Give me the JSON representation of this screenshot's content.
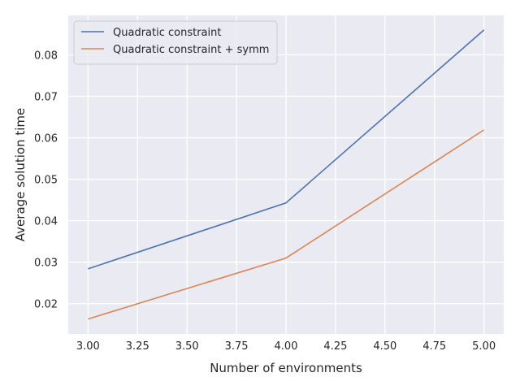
{
  "chart_data": {
    "type": "line",
    "x": [
      3.0,
      4.0,
      5.0
    ],
    "series": [
      {
        "name": "Quadratic constraint",
        "color": "#4c72b0",
        "values": [
          0.0284,
          0.0443,
          0.086
        ]
      },
      {
        "name": "Quadratic constraint + symm",
        "color": "#dd8452",
        "values": [
          0.0163,
          0.031,
          0.0619
        ]
      }
    ],
    "xlabel": "Number of environments",
    "ylabel": "Average solution time",
    "xlim": [
      2.9,
      5.1
    ],
    "ylim": [
      0.0127,
      0.0895
    ],
    "xticks": [
      3.0,
      3.25,
      3.5,
      3.75,
      4.0,
      4.25,
      4.5,
      4.75,
      5.0
    ],
    "xtick_labels": [
      "3.00",
      "3.25",
      "3.50",
      "3.75",
      "4.00",
      "4.25",
      "4.50",
      "4.75",
      "5.00"
    ],
    "yticks": [
      0.02,
      0.03,
      0.04,
      0.05,
      0.06,
      0.07,
      0.08
    ],
    "ytick_labels": [
      "0.02",
      "0.03",
      "0.04",
      "0.05",
      "0.06",
      "0.07",
      "0.08"
    ],
    "grid": true,
    "legend_position": "top-left",
    "background_color": "#eaeaf2",
    "grid_color": "#ffffff"
  }
}
